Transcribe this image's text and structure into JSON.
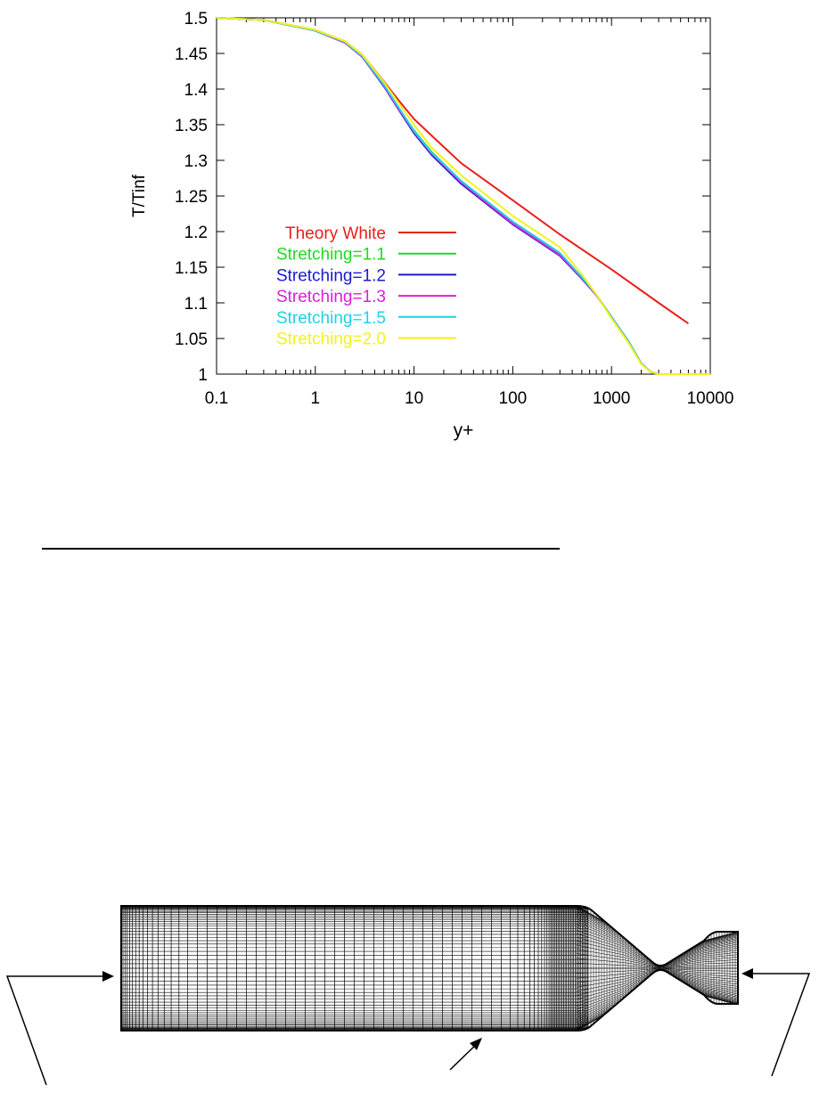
{
  "chart_data": {
    "type": "line",
    "xlabel": "y+",
    "ylabel": "T/Tinf",
    "xscale": "log",
    "xlim": [
      0.1,
      10000
    ],
    "ylim": [
      1,
      1.5
    ],
    "xticks": [
      {
        "value": 0.1,
        "label": "0.1"
      },
      {
        "value": 1,
        "label": "1"
      },
      {
        "value": 10,
        "label": "10"
      },
      {
        "value": 100,
        "label": "100"
      },
      {
        "value": 1000,
        "label": "1000"
      },
      {
        "value": 10000,
        "label": "10000"
      }
    ],
    "yticks": [
      {
        "value": 1,
        "label": "1"
      },
      {
        "value": 1.05,
        "label": "1.05"
      },
      {
        "value": 1.1,
        "label": "1.1"
      },
      {
        "value": 1.15,
        "label": "1.15"
      },
      {
        "value": 1.2,
        "label": "1.2"
      },
      {
        "value": 1.25,
        "label": "1.25"
      },
      {
        "value": 1.3,
        "label": "1.3"
      },
      {
        "value": 1.35,
        "label": "1.35"
      },
      {
        "value": 1.4,
        "label": "1.4"
      },
      {
        "value": 1.45,
        "label": "1.45"
      },
      {
        "value": 1.5,
        "label": "1.5"
      }
    ],
    "grid": false,
    "legend_position": "center-left",
    "series": [
      {
        "name": "Theory White",
        "color": "#e8201c",
        "x": [
          0.1,
          0.3,
          1,
          2,
          3,
          5,
          7,
          10,
          15,
          30,
          100,
          300,
          1000,
          3000,
          6000
        ],
        "y": [
          1.5,
          1.497,
          1.483,
          1.467,
          1.448,
          1.41,
          1.384,
          1.358,
          1.335,
          1.296,
          1.244,
          1.196,
          1.147,
          1.1,
          1.071
        ]
      },
      {
        "name": "Stretching=1.1",
        "color": "#1fd91f",
        "x": [
          0.1,
          0.3,
          1,
          2,
          3,
          5,
          7,
          10,
          15,
          30,
          100,
          300,
          500,
          700,
          1000,
          1500,
          2000,
          2500,
          3000,
          10000
        ],
        "y": [
          1.5,
          1.497,
          1.482,
          1.466,
          1.446,
          1.405,
          1.373,
          1.342,
          1.312,
          1.271,
          1.213,
          1.169,
          1.136,
          1.112,
          1.08,
          1.045,
          1.015,
          1.003,
          1.0,
          1.0
        ]
      },
      {
        "name": "Stretching=1.2",
        "color": "#1a1acc",
        "x": [
          0.1,
          0.3,
          1,
          2,
          3,
          5,
          7,
          10,
          15,
          30,
          100,
          300,
          500,
          700,
          1000,
          1500,
          2000,
          2500,
          3000,
          10000
        ],
        "y": [
          1.5,
          1.497,
          1.482,
          1.465,
          1.445,
          1.403,
          1.371,
          1.338,
          1.308,
          1.267,
          1.21,
          1.166,
          1.134,
          1.111,
          1.08,
          1.045,
          1.015,
          1.003,
          1.0,
          1.0
        ]
      },
      {
        "name": "Stretching=1.3",
        "color": "#d91fd9",
        "x": [
          0.1,
          0.3,
          1,
          2,
          3,
          5,
          7,
          10,
          15,
          30,
          100,
          300,
          500,
          700,
          1000,
          1500,
          2000,
          2500,
          3000,
          10000
        ],
        "y": [
          1.5,
          1.497,
          1.482,
          1.465,
          1.445,
          1.404,
          1.372,
          1.34,
          1.31,
          1.269,
          1.211,
          1.167,
          1.135,
          1.111,
          1.08,
          1.045,
          1.015,
          1.003,
          1.0,
          1.0
        ]
      },
      {
        "name": "Stretching=1.5",
        "color": "#20d0e8",
        "x": [
          0.1,
          0.3,
          1,
          2,
          3,
          5,
          7,
          10,
          15,
          30,
          100,
          300,
          500,
          700,
          1000,
          1500,
          2000,
          2500,
          3000,
          10000
        ],
        "y": [
          1.5,
          1.497,
          1.482,
          1.466,
          1.446,
          1.405,
          1.374,
          1.341,
          1.311,
          1.271,
          1.214,
          1.17,
          1.136,
          1.112,
          1.08,
          1.045,
          1.015,
          1.003,
          1.0,
          1.0
        ]
      },
      {
        "name": "Stretching=2.0",
        "color": "#f2f21a",
        "x": [
          0.1,
          0.3,
          1,
          2,
          3,
          5,
          7,
          10,
          15,
          30,
          100,
          300,
          500,
          700,
          1000,
          1500,
          2000,
          2500,
          3000,
          10000
        ],
        "y": [
          1.5,
          1.497,
          1.483,
          1.467,
          1.448,
          1.409,
          1.38,
          1.35,
          1.318,
          1.279,
          1.222,
          1.178,
          1.14,
          1.112,
          1.078,
          1.043,
          1.014,
          1.003,
          1.0,
          1.0
        ]
      }
    ]
  },
  "colors": {
    "axis": "#000000",
    "mesh": "#000000"
  }
}
